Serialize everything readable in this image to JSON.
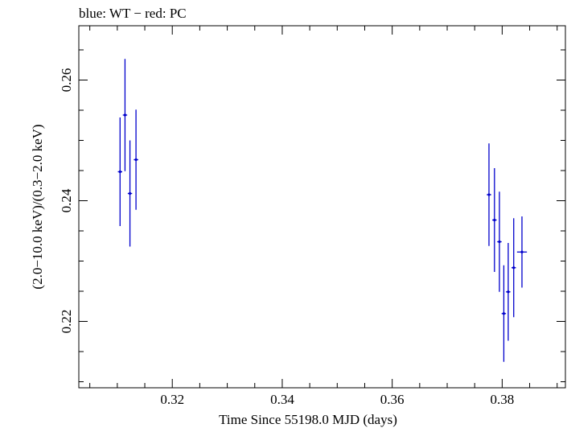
{
  "chart_data": {
    "type": "scatter",
    "title": "blue: WT − red: PC",
    "xlabel": "Time Since 55198.0 MJD (days)",
    "ylabel": "(2.0−10.0 keV)/(0.3−2.0 keV)",
    "xlim": [
      0.303,
      0.3915
    ],
    "ylim": [
      0.209,
      0.269
    ],
    "x_ticks": [
      {
        "value": 0.32,
        "label": "0.32"
      },
      {
        "value": 0.34,
        "label": "0.34"
      },
      {
        "value": 0.36,
        "label": "0.36"
      },
      {
        "value": 0.38,
        "label": "0.38"
      }
    ],
    "y_ticks": [
      {
        "value": 0.22,
        "label": "0.22"
      },
      {
        "value": 0.24,
        "label": "0.24"
      },
      {
        "value": 0.26,
        "label": "0.26"
      }
    ],
    "grid": false,
    "series": [
      {
        "name": "WT",
        "color": "#0000cc",
        "points": [
          {
            "x": 0.3105,
            "y": 0.2448,
            "xerr": 0.0004,
            "yerr": 0.009
          },
          {
            "x": 0.3114,
            "y": 0.2542,
            "xerr": 0.0004,
            "yerr": 0.0093
          },
          {
            "x": 0.3123,
            "y": 0.2412,
            "xerr": 0.0004,
            "yerr": 0.0088
          },
          {
            "x": 0.3134,
            "y": 0.2468,
            "xerr": 0.0004,
            "yerr": 0.0083
          },
          {
            "x": 0.3776,
            "y": 0.241,
            "xerr": 0.0004,
            "yerr": 0.0085
          },
          {
            "x": 0.3786,
            "y": 0.2368,
            "xerr": 0.0004,
            "yerr": 0.0086
          },
          {
            "x": 0.3795,
            "y": 0.2332,
            "xerr": 0.0004,
            "yerr": 0.0083
          },
          {
            "x": 0.3803,
            "y": 0.2213,
            "xerr": 0.0004,
            "yerr": 0.008
          },
          {
            "x": 0.3811,
            "y": 0.2249,
            "xerr": 0.0004,
            "yerr": 0.0081
          },
          {
            "x": 0.3821,
            "y": 0.2289,
            "xerr": 0.0004,
            "yerr": 0.0082
          },
          {
            "x": 0.3836,
            "y": 0.2315,
            "xerr": 0.0009,
            "yerr": 0.0059
          }
        ]
      }
    ]
  }
}
